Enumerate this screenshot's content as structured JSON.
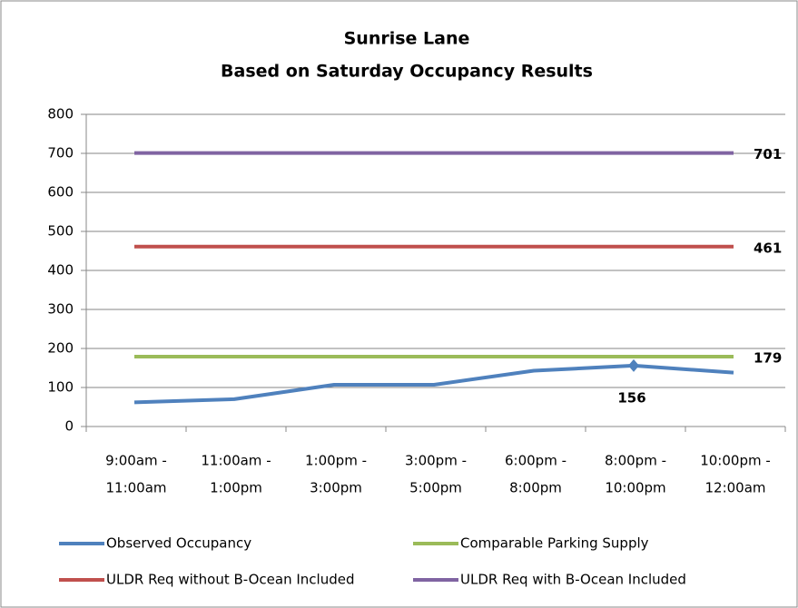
{
  "chart_data": {
    "type": "line",
    "title": [
      "Sunrise Lane",
      "Based on Saturday Occupancy Results"
    ],
    "categories": [
      [
        "9:00am -",
        "11:00am"
      ],
      [
        "11:00am -",
        "1:00pm"
      ],
      [
        "1:00pm -",
        "3:00pm"
      ],
      [
        "3:00pm -",
        "5:00pm"
      ],
      [
        "6:00pm -",
        "8:00pm"
      ],
      [
        "8:00pm -",
        "10:00pm"
      ],
      [
        "10:00pm -",
        "12:00am"
      ]
    ],
    "series": [
      {
        "name": "Observed Occupancy",
        "color": "#4f81bd",
        "values": [
          62,
          70,
          107,
          107,
          143,
          156,
          138
        ]
      },
      {
        "name": "Comparable Parking Supply",
        "color": "#9bbb59",
        "values": [
          179,
          179,
          179,
          179,
          179,
          179,
          179
        ]
      },
      {
        "name": "ULDR Req without B-Ocean Included",
        "color": "#c0504d",
        "values": [
          461,
          461,
          461,
          461,
          461,
          461,
          461
        ]
      },
      {
        "name": "ULDR Req with B-Ocean Included",
        "color": "#8064a2",
        "values": [
          701,
          701,
          701,
          701,
          701,
          701,
          701
        ]
      }
    ],
    "ylim": [
      0,
      800
    ],
    "yticks": [
      0,
      100,
      200,
      300,
      400,
      500,
      600,
      700,
      800
    ],
    "grid": true,
    "legend": "bottom"
  }
}
